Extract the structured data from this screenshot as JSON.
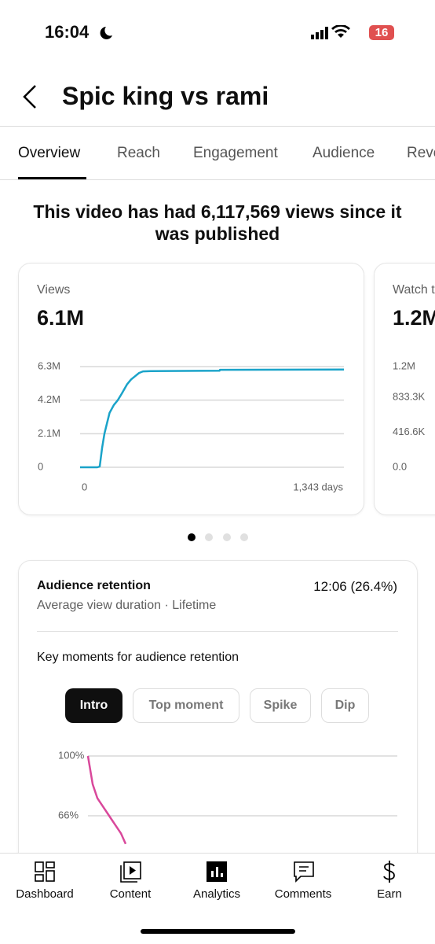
{
  "status_bar": {
    "time": "16:04",
    "battery": "16"
  },
  "header": {
    "title": "Spic king vs rami"
  },
  "tabs": [
    "Overview",
    "Reach",
    "Engagement",
    "Audience",
    "Revenue"
  ],
  "headline": "This video has had 6,117,569 views since it was published",
  "retention": {
    "title": "Audience retention",
    "value": "12:06 (26.4%)",
    "subtitle": "Average view duration · Lifetime",
    "key_moments": "Key moments for audience retention",
    "chips": [
      "Intro",
      "Top moment",
      "Spike",
      "Dip"
    ]
  },
  "nav": [
    "Dashboard",
    "Content",
    "Analytics",
    "Comments",
    "Earn"
  ],
  "chart_data": [
    {
      "type": "line",
      "title": "Views",
      "total": "6.1M",
      "x": [
        0,
        88,
        100,
        112,
        124,
        136,
        150,
        172,
        192,
        212,
        240,
        260,
        280,
        300,
        320,
        360,
        710,
        712,
        1343
      ],
      "series": [
        {
          "color": "#1aa3c9",
          "values": [
            0,
            0,
            50000,
            1200000,
            2100000,
            2700000,
            3400000,
            3900000,
            4200000,
            4600000,
            5200000,
            5500000,
            5700000,
            5900000,
            6000000,
            6020000,
            6040000,
            6100000,
            6117569
          ]
        }
      ],
      "xlim": [
        0,
        1343
      ],
      "xticks": [
        0,
        {
          "value": 1343,
          "label": "1,343 days"
        }
      ],
      "ylim": [
        0,
        6300000
      ],
      "yticks": [
        {
          "value": 6300000,
          "label": "6.3M"
        },
        {
          "value": 4200000,
          "label": "4.2M"
        },
        {
          "value": 2100000,
          "label": "2.1M"
        },
        0
      ],
      "grid": true
    },
    {
      "type": "line",
      "title": "Watch time",
      "total": "1.2M",
      "series": [],
      "ylim": [
        0,
        1200000
      ],
      "yticks": [
        {
          "value": 1200000,
          "label": "1.2M"
        },
        {
          "value": 833300,
          "label": "833.3K"
        },
        {
          "value": 416600,
          "label": "416.6K"
        },
        {
          "value": 0,
          "label": "0.0"
        }
      ],
      "grid": true
    },
    {
      "type": "line",
      "series": [
        {
          "color": "#d9489b",
          "values": [
            100,
            84,
            76,
            72,
            68,
            64,
            60,
            56,
            50
          ]
        }
      ],
      "ylim": [
        0,
        100
      ],
      "yticks": [
        {
          "value": 100,
          "label": "100%"
        },
        {
          "value": 66,
          "label": "66%"
        }
      ],
      "grid": true
    }
  ]
}
